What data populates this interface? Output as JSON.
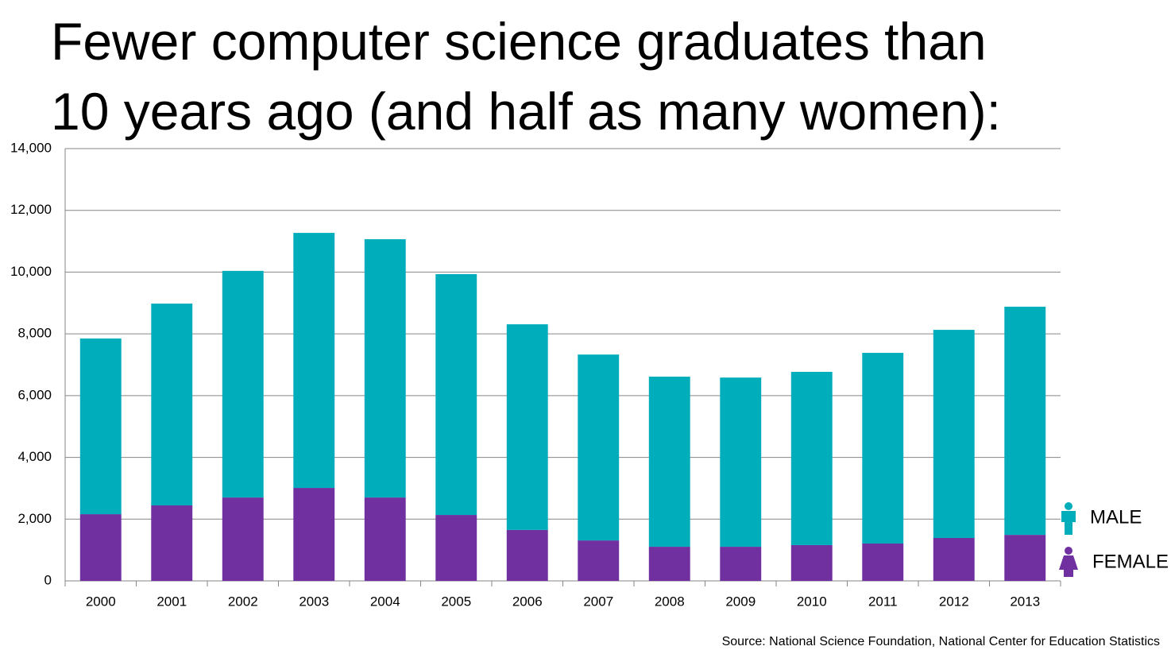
{
  "chart_data": {
    "type": "stacked-bar",
    "title": [
      "Fewer computer science graduates than",
      "10 years ago (and half as many women):"
    ],
    "source": "Source: National Science Foundation, National Center for Education Statistics",
    "categories": [
      "2000",
      "2001",
      "2002",
      "2003",
      "2004",
      "2005",
      "2006",
      "2007",
      "2008",
      "2009",
      "2010",
      "2011",
      "2012",
      "2013"
    ],
    "series": [
      {
        "name": "FEMALE",
        "color": "#7030a0",
        "values": [
          2160,
          2445,
          2700,
          3010,
          2700,
          2135,
          1650,
          1310,
          1105,
          1105,
          1160,
          1210,
          1390,
          1490
        ]
      },
      {
        "name": "MALE",
        "color": "#00adbb",
        "values": [
          5690,
          6535,
          7340,
          8260,
          8365,
          7800,
          6660,
          6020,
          5510,
          5480,
          5610,
          6175,
          6740,
          7390
        ]
      }
    ],
    "ylim": [
      0,
      14000
    ],
    "yticks": [
      0,
      {
        "value": 2000,
        "label": "2,000"
      },
      {
        "value": 4000,
        "label": "4,000"
      },
      {
        "value": 6000,
        "label": "6,000"
      },
      {
        "value": 8000,
        "label": "8,000"
      },
      {
        "value": 10000,
        "label": "10,000"
      },
      {
        "value": 12000,
        "label": "12,000"
      },
      {
        "value": 14000,
        "label": "14,000"
      }
    ],
    "grid": true
  }
}
